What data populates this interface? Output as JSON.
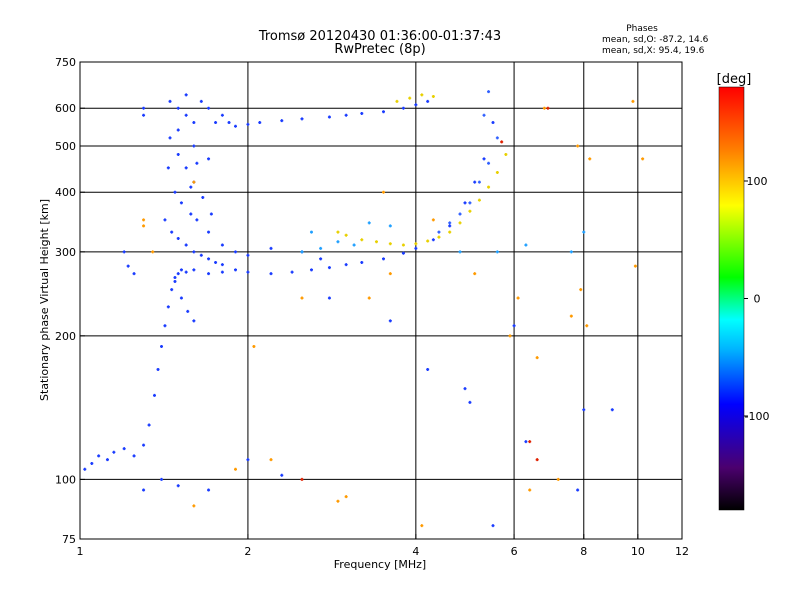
{
  "chart_data": {
    "type": "scatter",
    "title": "Tromsø 20120430 01:36:00-01:37:43",
    "subtitle": "RwPretec (8p)",
    "phase_header": "Phases",
    "phase_stats": [
      "mean, sd,O: -87.2, 14.6",
      "mean, sd,X:  95.4, 19.6"
    ],
    "xlabel": "Frequency [MHz]",
    "ylabel": "Stationary phase Virtual Height [km]",
    "x_scale": "log",
    "y_scale": "log",
    "xlim": [
      1,
      12
    ],
    "ylim": [
      75,
      750
    ],
    "x_ticks": [
      1,
      2,
      4,
      6,
      8,
      10,
      12
    ],
    "y_ticks": [
      75,
      100,
      200,
      300,
      400,
      500,
      600,
      750
    ],
    "x_grid": [
      2,
      4,
      6,
      8,
      10
    ],
    "y_grid": [
      100,
      200,
      300,
      400,
      500,
      600
    ],
    "grid": true,
    "colorbar": {
      "label": "[deg]",
      "range": [
        -180,
        180
      ],
      "ticks": [
        100,
        0,
        -100
      ],
      "colors": [
        "#000000",
        "#4b006e",
        "#0000ff",
        "#00b4ff",
        "#00ffff",
        "#00ff00",
        "#ffff00",
        "#ff8000",
        "#ff0000"
      ]
    },
    "series": [
      {
        "trace": "o-low",
        "color": "#1a3cff",
        "points": [
          [
            1.02,
            105
          ],
          [
            1.05,
            108
          ],
          [
            1.08,
            112
          ],
          [
            1.12,
            110
          ],
          [
            1.15,
            114
          ],
          [
            1.2,
            116
          ],
          [
            1.25,
            112
          ],
          [
            1.3,
            118
          ],
          [
            1.33,
            130
          ],
          [
            1.36,
            150
          ],
          [
            1.38,
            170
          ],
          [
            1.4,
            190
          ],
          [
            1.42,
            210
          ],
          [
            1.44,
            230
          ],
          [
            1.46,
            250
          ],
          [
            1.48,
            265
          ],
          [
            1.5,
            270
          ],
          [
            1.52,
            275
          ],
          [
            1.55,
            272
          ],
          [
            1.6,
            275
          ],
          [
            1.7,
            270
          ],
          [
            1.8,
            272
          ],
          [
            1.9,
            275
          ],
          [
            2.0,
            272
          ],
          [
            2.2,
            270
          ],
          [
            2.4,
            272
          ],
          [
            2.6,
            275
          ],
          [
            2.8,
            278
          ],
          [
            3.0,
            282
          ],
          [
            3.2,
            285
          ],
          [
            3.5,
            290
          ],
          [
            3.8,
            298
          ],
          [
            4.0,
            305
          ],
          [
            4.3,
            318
          ],
          [
            4.6,
            340
          ],
          [
            4.9,
            380
          ],
          [
            5.1,
            420
          ],
          [
            5.3,
            470
          ],
          [
            5.5,
            560
          ]
        ]
      },
      {
        "trace": "o-spread",
        "color": "#1a3cff",
        "points": [
          [
            1.45,
            620
          ],
          [
            1.5,
            600
          ],
          [
            1.55,
            580
          ],
          [
            1.6,
            560
          ],
          [
            1.45,
            520
          ],
          [
            1.5,
            480
          ],
          [
            1.55,
            450
          ],
          [
            1.6,
            420
          ],
          [
            1.48,
            400
          ],
          [
            1.52,
            380
          ],
          [
            1.58,
            360
          ],
          [
            1.62,
            350
          ],
          [
            1.46,
            330
          ],
          [
            1.5,
            320
          ],
          [
            1.55,
            310
          ],
          [
            1.6,
            300
          ],
          [
            1.65,
            295
          ],
          [
            1.7,
            290
          ],
          [
            1.75,
            285
          ],
          [
            1.8,
            282
          ],
          [
            1.48,
            260
          ],
          [
            1.52,
            240
          ],
          [
            1.56,
            225
          ],
          [
            1.6,
            215
          ],
          [
            1.42,
            350
          ],
          [
            1.44,
            450
          ],
          [
            1.6,
            500
          ],
          [
            1.7,
            470
          ],
          [
            1.75,
            560
          ],
          [
            1.65,
            620
          ],
          [
            1.55,
            640
          ],
          [
            1.7,
            600
          ],
          [
            1.8,
            580
          ],
          [
            1.85,
            560
          ],
          [
            1.9,
            550
          ],
          [
            2.0,
            555
          ],
          [
            2.1,
            560
          ],
          [
            2.3,
            565
          ],
          [
            2.5,
            570
          ],
          [
            2.8,
            575
          ],
          [
            3.0,
            580
          ],
          [
            3.2,
            585
          ],
          [
            3.5,
            590
          ],
          [
            3.8,
            600
          ],
          [
            4.0,
            610
          ],
          [
            4.2,
            620
          ],
          [
            1.3,
            600
          ],
          [
            1.3,
            580
          ],
          [
            1.22,
            280
          ],
          [
            1.25,
            270
          ],
          [
            1.2,
            300
          ],
          [
            1.7,
            330
          ],
          [
            1.8,
            310
          ],
          [
            1.9,
            300
          ],
          [
            2.0,
            295
          ],
          [
            2.2,
            305
          ],
          [
            2.5,
            300
          ],
          [
            2.7,
            290
          ],
          [
            1.58,
            410
          ],
          [
            1.66,
            390
          ],
          [
            1.72,
            360
          ],
          [
            1.62,
            460
          ],
          [
            1.5,
            540
          ]
        ]
      },
      {
        "trace": "x-trace",
        "color": "#e8d000",
        "points": [
          [
            2.9,
            330
          ],
          [
            3.0,
            325
          ],
          [
            3.2,
            318
          ],
          [
            3.4,
            315
          ],
          [
            3.6,
            312
          ],
          [
            3.8,
            310
          ],
          [
            4.0,
            312
          ],
          [
            4.2,
            316
          ],
          [
            4.4,
            322
          ],
          [
            4.6,
            330
          ],
          [
            4.8,
            345
          ],
          [
            5.0,
            365
          ],
          [
            5.2,
            385
          ],
          [
            5.4,
            410
          ],
          [
            5.6,
            440
          ],
          [
            5.8,
            480
          ],
          [
            3.7,
            620
          ],
          [
            3.9,
            630
          ],
          [
            4.1,
            640
          ],
          [
            4.3,
            635
          ]
        ]
      },
      {
        "trace": "x-blue",
        "color": "#3060ff",
        "points": [
          [
            4.4,
            330
          ],
          [
            4.6,
            345
          ],
          [
            4.8,
            360
          ],
          [
            5.0,
            380
          ],
          [
            5.2,
            420
          ],
          [
            5.4,
            460
          ],
          [
            5.6,
            520
          ],
          [
            5.3,
            580
          ],
          [
            5.4,
            650
          ]
        ]
      },
      {
        "trace": "scatter",
        "color": "#20a0ff",
        "points": [
          [
            2.6,
            330
          ],
          [
            2.9,
            315
          ],
          [
            3.3,
            345
          ],
          [
            3.6,
            340
          ],
          [
            4.8,
            300
          ],
          [
            5.6,
            300
          ],
          [
            6.3,
            310
          ],
          [
            7.6,
            300
          ],
          [
            8.0,
            330
          ],
          [
            2.5,
            300
          ],
          [
            2.7,
            305
          ],
          [
            3.1,
            310
          ]
        ]
      },
      {
        "trace": "noise",
        "color": "#ff9a00",
        "points": [
          [
            1.3,
            350
          ],
          [
            1.3,
            340
          ],
          [
            1.35,
            300
          ],
          [
            1.6,
            420
          ],
          [
            2.05,
            190
          ],
          [
            2.5,
            240
          ],
          [
            2.9,
            90
          ],
          [
            3.0,
            92
          ],
          [
            3.6,
            270
          ],
          [
            4.1,
            80
          ],
          [
            5.1,
            270
          ],
          [
            6.4,
            95
          ],
          [
            6.6,
            180
          ],
          [
            7.2,
            100
          ],
          [
            7.8,
            500
          ],
          [
            8.2,
            470
          ],
          [
            9.8,
            620
          ],
          [
            9.9,
            280
          ],
          [
            10.2,
            470
          ],
          [
            6.1,
            240
          ],
          [
            5.9,
            200
          ],
          [
            7.6,
            220
          ],
          [
            8.1,
            210
          ],
          [
            7.9,
            250
          ],
          [
            6.8,
            600
          ],
          [
            3.3,
            240
          ],
          [
            1.6,
            88
          ],
          [
            1.9,
            105
          ],
          [
            2.2,
            110
          ],
          [
            4.3,
            350
          ],
          [
            3.5,
            400
          ]
        ]
      },
      {
        "trace": "noise-blue",
        "color": "#1a3cff",
        "points": [
          [
            1.4,
            100
          ],
          [
            1.5,
            97
          ],
          [
            1.7,
            95
          ],
          [
            2.0,
            110
          ],
          [
            2.3,
            102
          ],
          [
            1.3,
            95
          ],
          [
            4.2,
            170
          ],
          [
            4.9,
            155
          ],
          [
            5.0,
            145
          ],
          [
            6.3,
            120
          ],
          [
            7.8,
            95
          ],
          [
            8.0,
            140
          ],
          [
            9.0,
            140
          ],
          [
            5.5,
            80
          ],
          [
            6.0,
            210
          ],
          [
            2.8,
            240
          ],
          [
            3.6,
            215
          ]
        ]
      },
      {
        "trace": "noise-red",
        "color": "#e02000",
        "points": [
          [
            6.4,
            120
          ],
          [
            6.6,
            110
          ],
          [
            2.5,
            100
          ],
          [
            5.7,
            510
          ],
          [
            6.9,
            600
          ]
        ]
      }
    ]
  }
}
